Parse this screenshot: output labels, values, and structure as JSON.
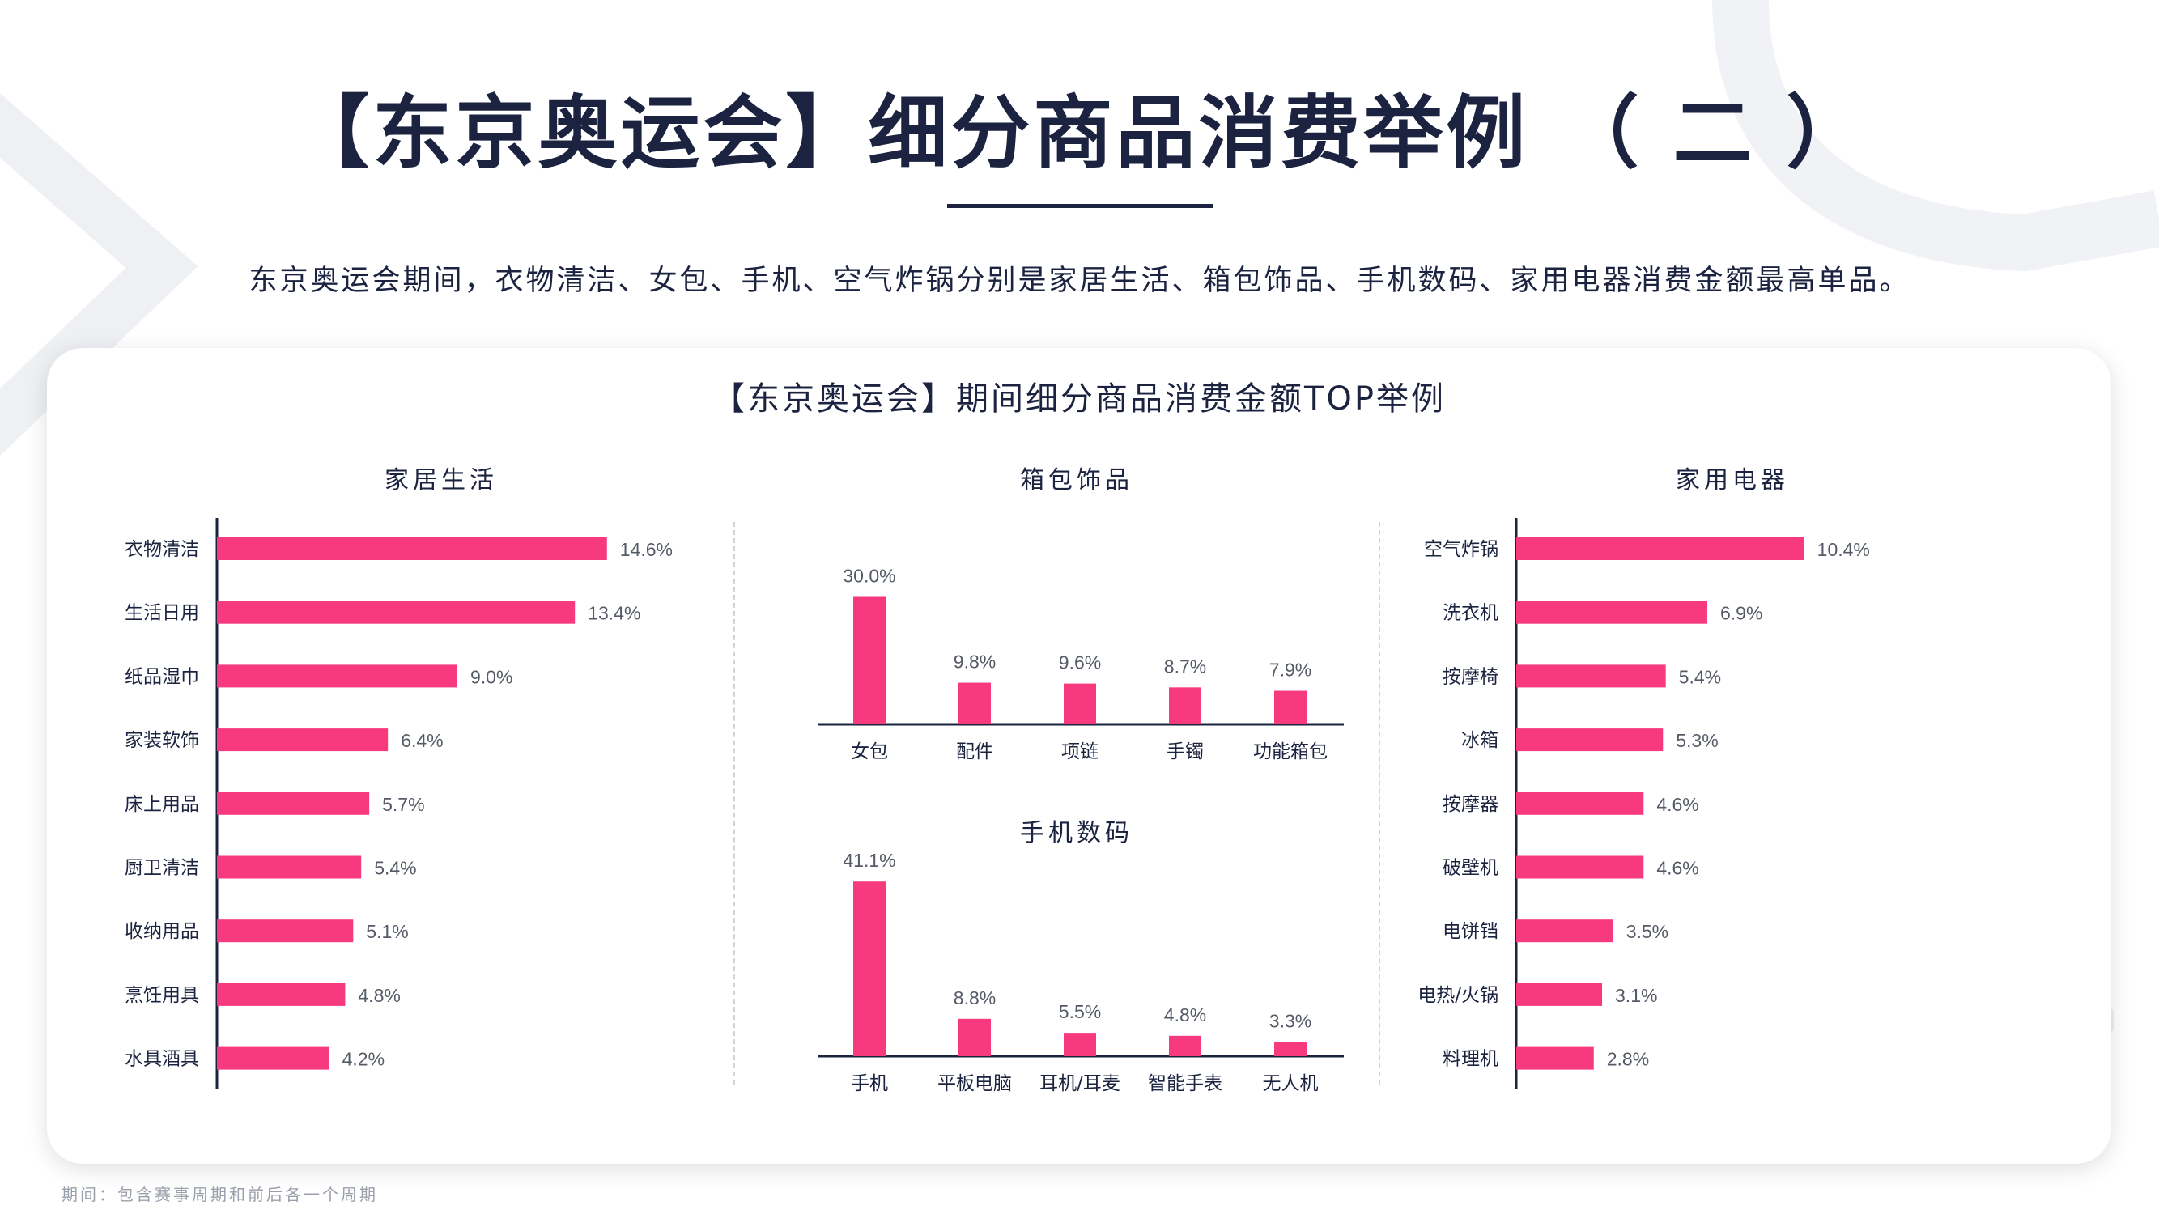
{
  "page": {
    "title": "【东京奥运会】细分商品消费举例 （ 二 ）",
    "subtitle": "东京奥运会期间，衣物清洁、女包、手机、空气炸锅分别是家居生活、箱包饰品、手机数码、家用电器消费金额最高单品。",
    "card_title": "【东京奥运会】期间细分商品消费金额TOP举例",
    "footnote": "期间：包含赛事周期和前后各一个周期"
  },
  "colors": {
    "bar": "#f73a7e",
    "text": "#1c2340",
    "value": "#555b66"
  },
  "chart_data": [
    {
      "type": "bar",
      "orientation": "horizontal",
      "title": "家居生活",
      "categories": [
        "衣物清洁",
        "生活日用",
        "纸品湿巾",
        "家装软饰",
        "床上用品",
        "厨卫清洁",
        "收纳用品",
        "烹饪用具",
        "水具酒具"
      ],
      "values": [
        14.6,
        13.4,
        9.0,
        6.4,
        5.7,
        5.4,
        5.1,
        4.8,
        4.2
      ],
      "labels": [
        "14.6%",
        "13.4%",
        "9.0%",
        "6.4%",
        "5.7%",
        "5.4%",
        "5.1%",
        "4.8%",
        "4.2%"
      ],
      "unit": "%"
    },
    {
      "type": "bar",
      "orientation": "vertical",
      "title": "箱包饰品",
      "categories": [
        "女包",
        "配件",
        "项链",
        "手镯",
        "功能箱包"
      ],
      "values": [
        30.0,
        9.8,
        9.6,
        8.7,
        7.9
      ],
      "labels": [
        "30.0%",
        "9.8%",
        "9.6%",
        "8.7%",
        "7.9%"
      ],
      "unit": "%"
    },
    {
      "type": "bar",
      "orientation": "vertical",
      "title": "手机数码",
      "categories": [
        "手机",
        "平板电脑",
        "耳机/耳麦",
        "智能手表",
        "无人机"
      ],
      "values": [
        41.1,
        8.8,
        5.5,
        4.8,
        3.3
      ],
      "labels": [
        "41.1%",
        "8.8%",
        "5.5%",
        "4.8%",
        "3.3%"
      ],
      "unit": "%"
    },
    {
      "type": "bar",
      "orientation": "horizontal",
      "title": "家用电器",
      "categories": [
        "空气炸锅",
        "洗衣机",
        "按摩椅",
        "冰箱",
        "按摩器",
        "破壁机",
        "电饼铛",
        "电热/火锅",
        "料理机"
      ],
      "values": [
        10.4,
        6.9,
        5.4,
        5.3,
        4.6,
        4.6,
        3.5,
        3.1,
        2.8
      ],
      "labels": [
        "10.4%",
        "6.9%",
        "5.4%",
        "5.3%",
        "4.6%",
        "4.6%",
        "3.5%",
        "3.1%",
        "2.8%"
      ],
      "unit": "%"
    }
  ]
}
